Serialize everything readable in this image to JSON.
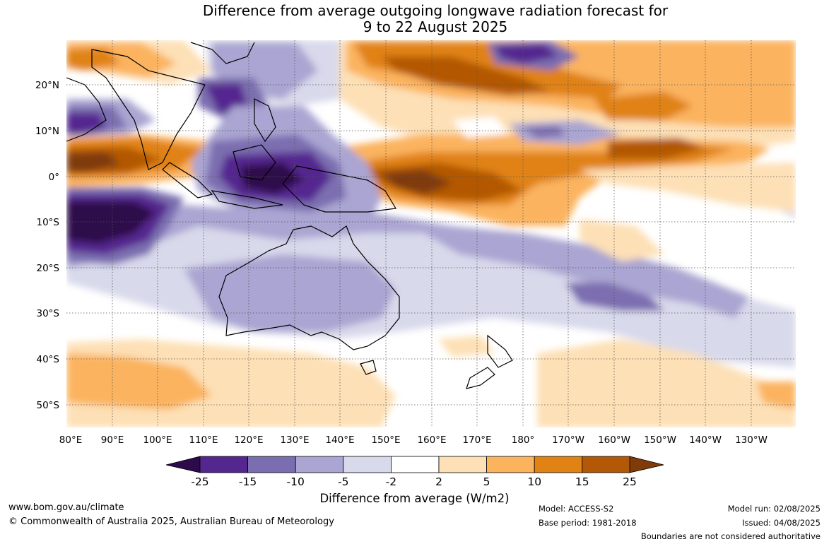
{
  "title": {
    "line1": "Difference from average outgoing longwave radiation forecast for",
    "line2": "9 to 22 August 2025"
  },
  "map": {
    "lat_labels": [
      "20°N",
      "10°N",
      "0°",
      "10°S",
      "20°S",
      "30°S",
      "40°S",
      "50°S"
    ],
    "lon_labels": [
      "80°E",
      "90°E",
      "100°E",
      "110°E",
      "120°E",
      "130°E",
      "140°E",
      "150°E",
      "160°E",
      "170°E",
      "180°",
      "170°W",
      "160°W",
      "150°W",
      "140°W",
      "130°W"
    ]
  },
  "colorbar": {
    "title": "Difference from average (W/m2)",
    "tick_labels": [
      "-25",
      "-15",
      "-10",
      "-5",
      "-2",
      "2",
      "5",
      "10",
      "15",
      "25"
    ],
    "colors": [
      "#2d0a4b",
      "#54278f",
      "#7b6eb0",
      "#aaa5d2",
      "#d8d9eb",
      "#ffffff",
      "#fde0b6",
      "#fbb35e",
      "#e08214",
      "#b35806",
      "#7f3b08"
    ]
  },
  "footer": {
    "website": "www.bom.gov.au/climate",
    "copyright": "© Commonwealth of Australia 2025, Australian Bureau of Meteorology",
    "model": "Model: ACCESS-S2",
    "base_period": "Base period: 1981-2018",
    "model_run": "Model run: 02/08/2025",
    "issued": "Issued: 04/08/2025",
    "disclaimer": "Boundaries are not considered authoritative"
  }
}
